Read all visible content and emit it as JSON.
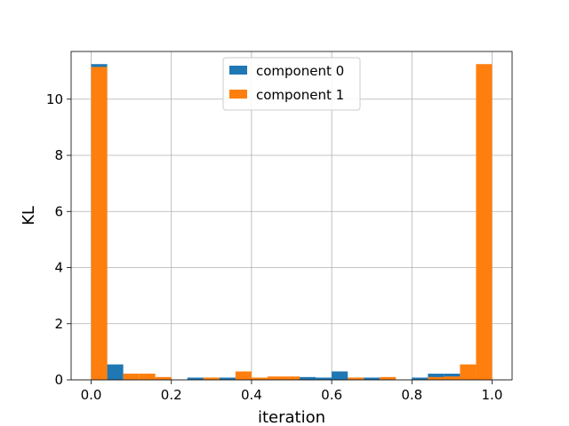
{
  "chart_data": {
    "type": "bar",
    "xlabel": "iteration",
    "ylabel": "KL",
    "xlim": [
      -0.05,
      1.05
    ],
    "ylim": [
      0,
      11.7
    ],
    "grid": true,
    "legend_position": "top-center",
    "bin_width": 0.04,
    "x_ticks": [
      "0.0",
      "0.2",
      "0.4",
      "0.6",
      "0.8",
      "1.0"
    ],
    "y_ticks": [
      "0",
      "2",
      "4",
      "6",
      "8",
      "10"
    ],
    "x_tick_values": [
      0.0,
      0.2,
      0.4,
      0.6,
      0.8,
      1.0
    ],
    "y_tick_values": [
      0,
      2,
      4,
      6,
      8,
      10
    ],
    "bin_starts": [
      0.0,
      0.04,
      0.08,
      0.12,
      0.16,
      0.2,
      0.24,
      0.28,
      0.32,
      0.36,
      0.4,
      0.44,
      0.48,
      0.52,
      0.56,
      0.6,
      0.64,
      0.68,
      0.72,
      0.76,
      0.8,
      0.84,
      0.88,
      0.92,
      0.96
    ],
    "series": [
      {
        "name": "component 0",
        "color": "#1f77b4",
        "values": [
          11.25,
          0.55,
          0.0,
          0.0,
          0.0,
          0.0,
          0.08,
          0.08,
          0.08,
          0.08,
          0.0,
          0.08,
          0.08,
          0.1,
          0.08,
          0.3,
          0.08,
          0.08,
          0.0,
          0.0,
          0.08,
          0.22,
          0.22,
          0.1,
          0.0
        ]
      },
      {
        "name": "component 1",
        "color": "#ff7f0e",
        "values": [
          11.15,
          0.0,
          0.22,
          0.22,
          0.1,
          0.0,
          0.0,
          0.08,
          0.0,
          0.3,
          0.08,
          0.12,
          0.12,
          0.0,
          0.0,
          0.0,
          0.08,
          0.0,
          0.1,
          0.0,
          0.0,
          0.1,
          0.12,
          0.55,
          11.25
        ]
      }
    ]
  }
}
